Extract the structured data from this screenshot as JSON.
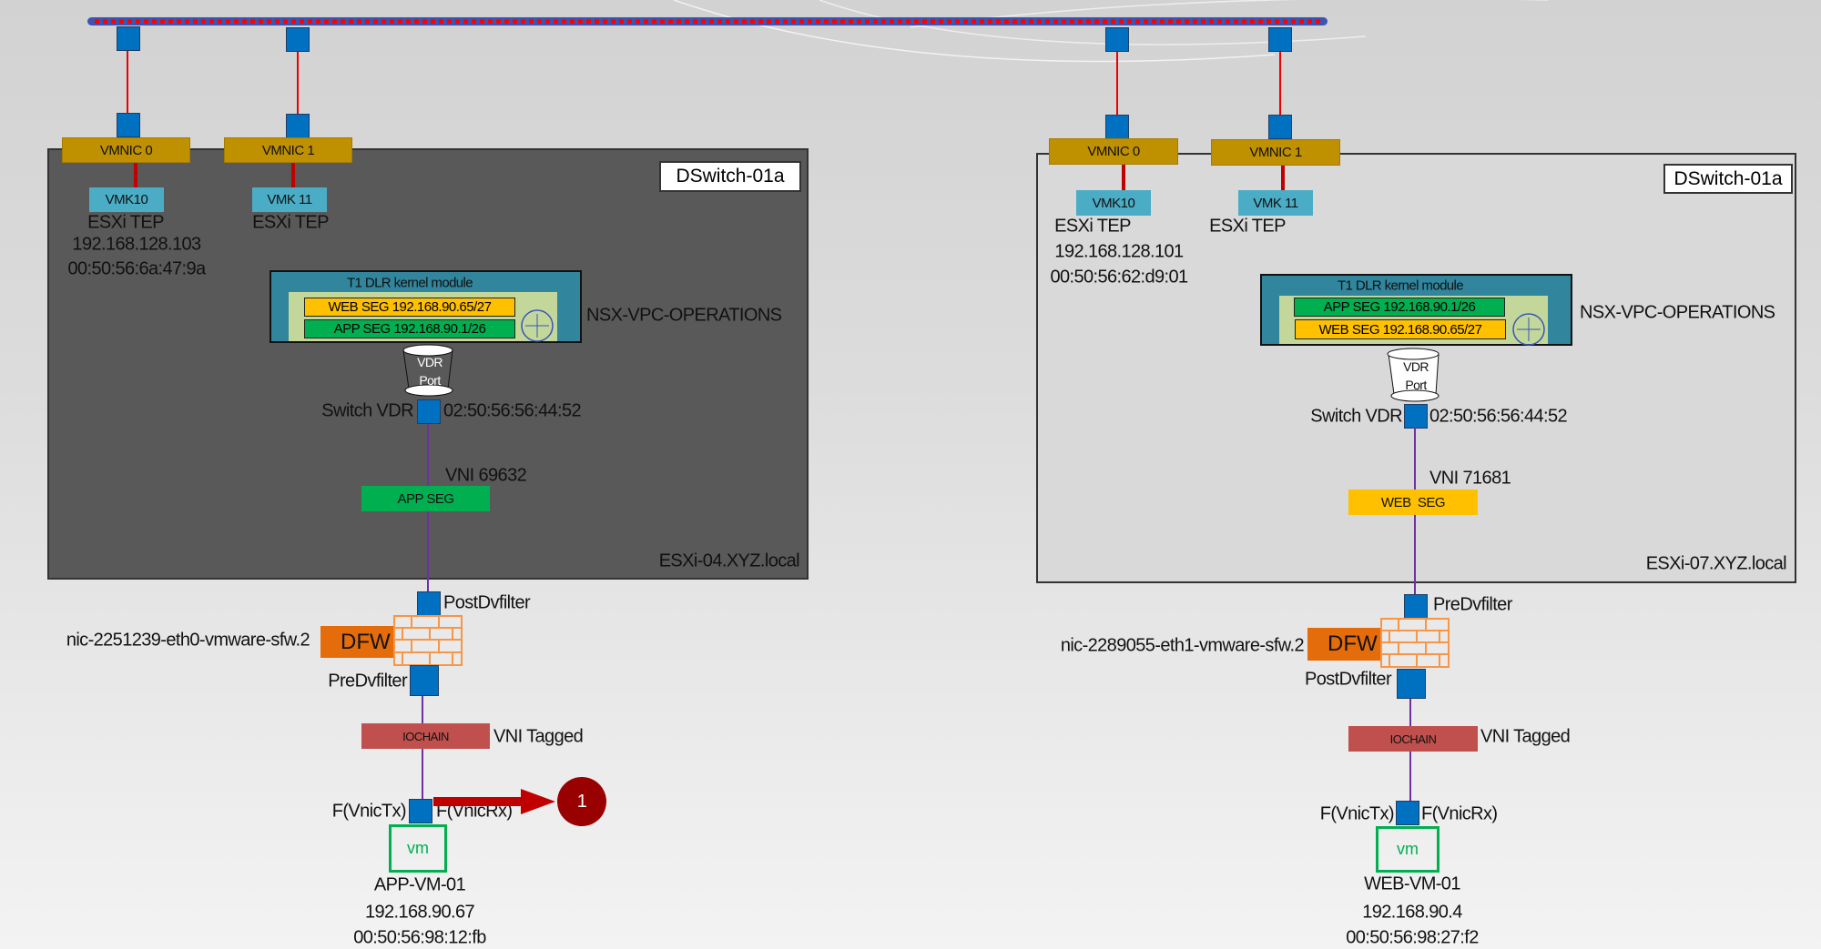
{
  "colors": {
    "bus": "#3a55b4",
    "bus_dots": "#ff0000",
    "port": "#0070c0",
    "vmnic": "#bf9000",
    "vmk": "#4bacc6",
    "app_seg": "#00b050",
    "web_seg": "#ffc000",
    "dfw": "#e46c0a",
    "iochain": "#c0504d",
    "vm": "#00b050",
    "callout": "#990000",
    "host_dark": "#595959",
    "host_light": "#d9d9d9"
  },
  "left_host": {
    "name": "ESXi-04.XYZ.local",
    "dswitch": "DSwitch-01a",
    "vmnic0": "VMNIC 0",
    "vmnic1": "VMNIC 1",
    "vmk0": "VMK10",
    "vmk1": "VMK 11",
    "tep0": "ESXi TEP",
    "tep1": "ESXi TEP",
    "tep_ip": "192.168.128.103",
    "tep_mac": "00:50:56:6a:47:9a",
    "dlr_title": "T1 DLR kernel module",
    "seg_top": "WEB SEG 192.168.90.65/27",
    "seg_bottom": "APP SEG 192.168.90.1/26",
    "gateway": "NSX-VPC-OPERATIONS",
    "vdr_port": "VDR Port",
    "switch_vdr": "Switch VDR",
    "vdr_mac": "02:50:56:56:44:52",
    "vni": "VNI 69632",
    "segment": "APP SEG",
    "filter_top": "PostDvfilter",
    "dfw": "DFW",
    "filter_name": "nic-2251239-eth0-vmware-sfw.2",
    "filter_bottom": "PreDvfilter",
    "iochain": "IOCHAIN",
    "vni_tagged": "VNI Tagged",
    "vnic_tx": "F(VnicTx)",
    "vnic_rx": "F(VnicRx)",
    "vm_icon": "vm",
    "vm_name": "APP-VM-01",
    "vm_ip": "192.168.90.67",
    "vm_mac": "00:50:56:98:12:fb",
    "callout": "1"
  },
  "right_host": {
    "name": "ESXi-07.XYZ.local",
    "dswitch": "DSwitch-01a",
    "vmnic0": "VMNIC 0",
    "vmnic1": "VMNIC 1",
    "vmk0": "VMK10",
    "vmk1": "VMK 11",
    "tep0": "ESXi TEP",
    "tep1": "ESXi TEP",
    "tep_ip": "192.168.128.101",
    "tep_mac": "00:50:56:62:d9:01",
    "dlr_title": "T1 DLR kernel module",
    "seg_top": "APP SEG 192.168.90.1/26",
    "seg_bottom": "WEB SEG 192.168.90.65/27",
    "gateway": "NSX-VPC-OPERATIONS",
    "vdr_port": "VDR Port",
    "switch_vdr": "Switch VDR",
    "vdr_mac": "02:50:56:56:44:52",
    "vni": "VNI 71681",
    "segment": "WEB  SEG",
    "filter_top": "PreDvfilter",
    "dfw": "DFW",
    "filter_name": "nic-2289055-eth1-vmware-sfw.2",
    "filter_bottom": "PostDvfilter",
    "iochain": "IOCHAIN",
    "vni_tagged": "VNI Tagged",
    "vnic_tx": "F(VnicTx)",
    "vnic_rx": "F(VnicRx)",
    "vm_icon": "vm",
    "vm_name": "WEB-VM-01",
    "vm_ip": "192.168.90.4",
    "vm_mac": "00:50:56:98:27:f2"
  }
}
